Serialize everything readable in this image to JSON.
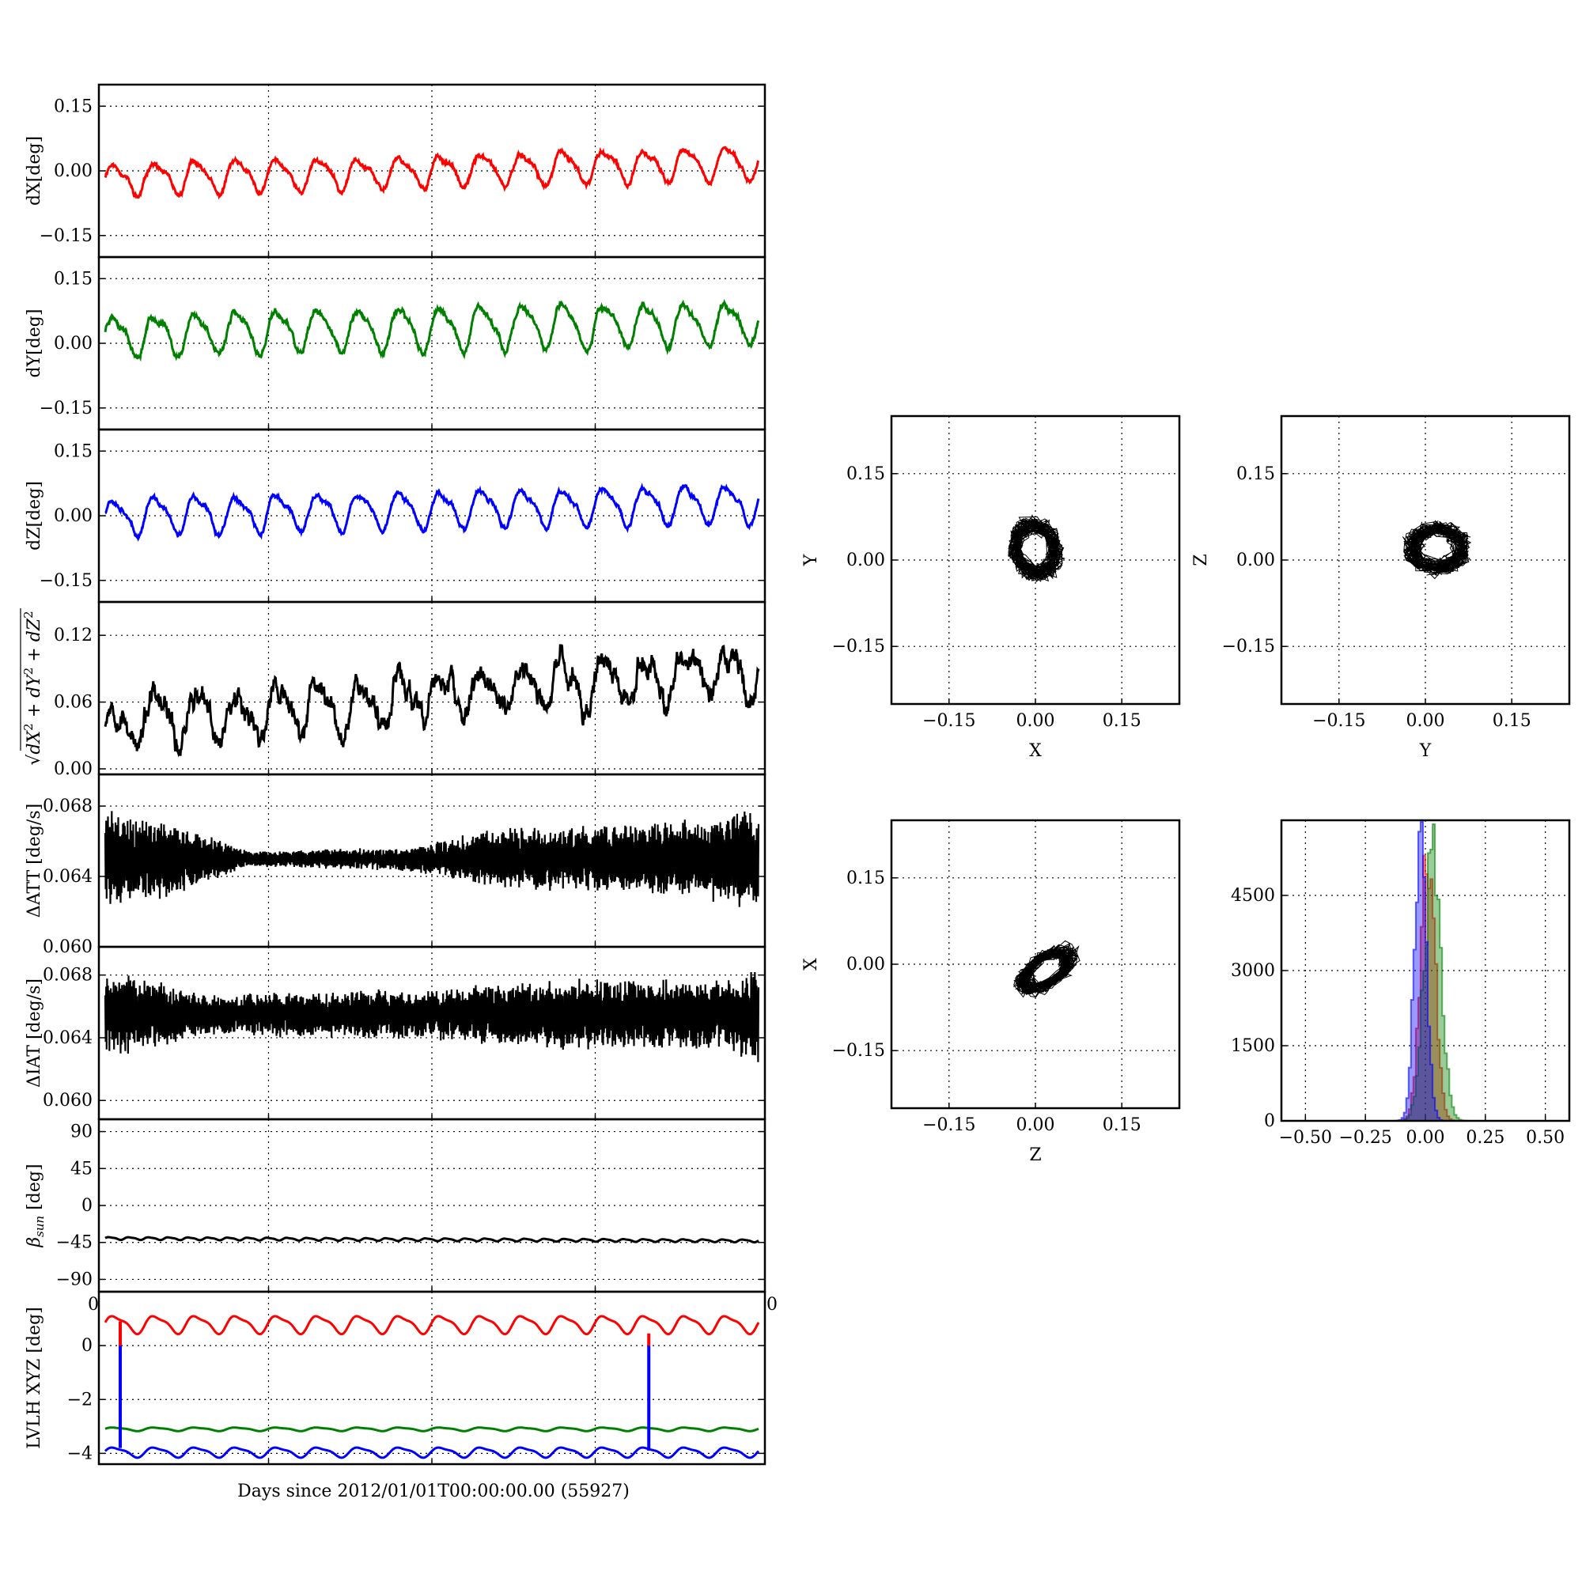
{
  "figure": {
    "xlabel": "Days since 2012/01/01T00:00:00.00 (55927)",
    "stray_tick_label_bottom": "0",
    "stray_tick_label_right": "0"
  },
  "chart_data": [
    {
      "id": "dx",
      "type": "line",
      "ylabel": "dX[deg]",
      "ylim": [
        -0.2,
        0.2
      ],
      "yticks": [
        0.15,
        0.0,
        -0.15
      ],
      "ytick_labels": [
        "0.15",
        "0.00",
        "−0.15"
      ],
      "grid": true,
      "series": [
        {
          "color": "#ff0000",
          "cycles": 16,
          "mean_start": -0.02,
          "mean_end": 0.02,
          "amplitude": 0.035,
          "noise": 0.006,
          "seed": 11
        }
      ]
    },
    {
      "id": "dy",
      "type": "line",
      "ylabel": "dY[deg]",
      "ylim": [
        -0.2,
        0.2
      ],
      "yticks": [
        0.15,
        0.0,
        -0.15
      ],
      "ytick_labels": [
        "0.15",
        "0.00",
        "−0.15"
      ],
      "grid": true,
      "series": [
        {
          "color": "#008000",
          "cycles": 16,
          "mean_start": 0.02,
          "mean_end": 0.05,
          "amplitude": 0.045,
          "noise": 0.008,
          "seed": 23
        }
      ]
    },
    {
      "id": "dz",
      "type": "line",
      "ylabel": "dZ[deg]",
      "ylim": [
        -0.2,
        0.2
      ],
      "yticks": [
        0.15,
        0.0,
        -0.15
      ],
      "ytick_labels": [
        "0.15",
        "0.00",
        "−0.15"
      ],
      "grid": true,
      "series": [
        {
          "color": "#0000ff",
          "cycles": 16,
          "mean_start": 0.0,
          "mean_end": 0.03,
          "amplitude": 0.04,
          "noise": 0.006,
          "seed": 37
        }
      ]
    },
    {
      "id": "dr",
      "type": "line",
      "ylabel_math": "sqrt-sum",
      "ylabel_parts": [
        "√",
        "dX",
        "2",
        "+",
        "dY",
        "2",
        "+",
        "dZ",
        "2"
      ],
      "ylim": [
        -0.005,
        0.15
      ],
      "yticks": [
        0.12,
        0.06,
        0.0
      ],
      "ytick_labels": [
        "0.12",
        "0.06",
        "0.00"
      ],
      "grid": true,
      "series": [
        {
          "color": "#000000",
          "cycles": 16,
          "mean_start": 0.04,
          "mean_end": 0.09,
          "amplitude": 0.02,
          "noise": 0.012,
          "seed": 53
        }
      ]
    },
    {
      "id": "datt",
      "type": "line",
      "ylabel": "ΔATT [deg/s]",
      "ylim": [
        0.06,
        0.0698
      ],
      "yticks": [
        0.068,
        0.064,
        0.06
      ],
      "ytick_labels": [
        "0.068",
        "0.064",
        "0.060"
      ],
      "grid": true,
      "series": [
        {
          "color": "#000000",
          "center": 0.065,
          "envelope": [
            [
              0,
              0.0025
            ],
            [
              10,
              0.002
            ],
            [
              22,
              0.0004
            ],
            [
              45,
              0.0006
            ],
            [
              60,
              0.0015
            ],
            [
              90,
              0.002
            ],
            [
              100,
              0.0027
            ]
          ],
          "seed": 71
        }
      ]
    },
    {
      "id": "diat",
      "type": "line",
      "ylabel": "ΔIAT [deg/s]",
      "ylim": [
        0.0588,
        0.0698
      ],
      "yticks": [
        0.068,
        0.064,
        0.06
      ],
      "ytick_labels": [
        "0.068",
        "0.064",
        "0.060"
      ],
      "grid": true,
      "series": [
        {
          "color": "#000000",
          "center": 0.0655,
          "envelope": [
            [
              0,
              0.0025
            ],
            [
              8,
              0.002
            ],
            [
              15,
              0.0012
            ],
            [
              50,
              0.0015
            ],
            [
              70,
              0.002
            ],
            [
              95,
              0.002
            ],
            [
              100,
              0.0028
            ]
          ],
          "seed": 89
        }
      ]
    },
    {
      "id": "beta",
      "type": "line",
      "ylabel": "β",
      "ylabel_sub": "sun",
      "ylabel_rest": " [deg]",
      "ylim": [
        -105,
        105
      ],
      "yticks": [
        90,
        45,
        0,
        -45,
        -90
      ],
      "ytick_labels": [
        "90",
        "45",
        "0",
        "−45",
        "−90"
      ],
      "grid": true,
      "series": [
        {
          "color": "#000000",
          "mean_start": -40,
          "mean_end": -43,
          "amplitude": 1.5,
          "cycles": 33
        }
      ]
    },
    {
      "id": "lvlh",
      "type": "line",
      "ylabel": "LVLH XYZ [deg]",
      "ylim": [
        -4.4,
        2.0
      ],
      "yticks": [
        0,
        -2,
        -4
      ],
      "ytick_labels": [
        "0",
        "−2",
        "−4"
      ],
      "grid": true,
      "series": [
        {
          "color": "#ff0000",
          "mean": 0.8,
          "amplitude": 0.3,
          "cycles": 16
        },
        {
          "color": "#008000",
          "mean": -3.1,
          "amplitude": 0.06,
          "cycles": 16
        },
        {
          "color": "#0000ff",
          "mean": -3.95,
          "amplitude": 0.17,
          "cycles": 16
        }
      ],
      "spikes": [
        {
          "x": 2.3,
          "color": "#0000ff",
          "from": -3.8,
          "to": 0.0
        },
        {
          "x": 2.3,
          "color": "#ff0000",
          "from": 0.0,
          "to": 0.9
        },
        {
          "x": 83.2,
          "color": "#0000ff",
          "from": -3.9,
          "to": 0.0
        },
        {
          "x": 83.2,
          "color": "#ff0000",
          "from": 0.0,
          "to": 0.45
        }
      ]
    },
    {
      "id": "xy",
      "type": "scatter",
      "xlabel": "X",
      "ylabel": "Y",
      "xlim": [
        -0.25,
        0.25
      ],
      "ylim": [
        -0.25,
        0.25
      ],
      "ticks": [
        -0.15,
        0.0,
        0.15
      ],
      "tick_labels": [
        "−0.15",
        "0.00",
        "0.15"
      ],
      "grid": true,
      "cloud": {
        "center": [
          0.0,
          0.02
        ],
        "radius": [
          0.045,
          0.055
        ],
        "tilt": 0.3,
        "seed": 101
      }
    },
    {
      "id": "yz",
      "type": "scatter",
      "xlabel": "Y",
      "ylabel": "Z",
      "xlim": [
        -0.25,
        0.25
      ],
      "ylim": [
        -0.25,
        0.25
      ],
      "ticks": [
        -0.15,
        0.0,
        0.15
      ],
      "tick_labels": [
        "−0.15",
        "0.00",
        "0.15"
      ],
      "grid": true,
      "cloud": {
        "center": [
          0.02,
          0.02
        ],
        "radius": [
          0.055,
          0.045
        ],
        "tilt": 0.0,
        "seed": 131
      }
    },
    {
      "id": "zx",
      "type": "scatter",
      "xlabel": "Z",
      "ylabel": "X",
      "xlim": [
        -0.25,
        0.25
      ],
      "ylim": [
        -0.25,
        0.25
      ],
      "ticks": [
        -0.15,
        0.0,
        0.15
      ],
      "tick_labels": [
        "−0.15",
        "0.00",
        "0.15"
      ],
      "grid": true,
      "cloud": {
        "center": [
          0.02,
          -0.01
        ],
        "radius": [
          0.06,
          0.03
        ],
        "tilt": 0.6,
        "seed": 151
      }
    },
    {
      "id": "hist",
      "type": "histogram",
      "xlim": [
        -0.6,
        0.6
      ],
      "ylim": [
        0,
        6000
      ],
      "xticks": [
        -0.5,
        -0.25,
        0.0,
        0.25,
        0.5
      ],
      "xtick_labels": [
        "−0.50",
        "−0.25",
        "0.00",
        "0.25",
        "0.50"
      ],
      "yticks": [
        4500,
        3000,
        1500,
        0
      ],
      "ytick_labels": [
        "4500",
        "3000",
        "1500",
        "0"
      ],
      "grid": true,
      "series": [
        {
          "color": "#ff0000",
          "center": 0.01,
          "width": 0.03,
          "peak": 5400
        },
        {
          "color": "#008000",
          "center": 0.03,
          "width": 0.035,
          "peak": 5300
        },
        {
          "color": "#0000ff",
          "center": -0.02,
          "width": 0.025,
          "peak": 5600
        }
      ]
    }
  ]
}
